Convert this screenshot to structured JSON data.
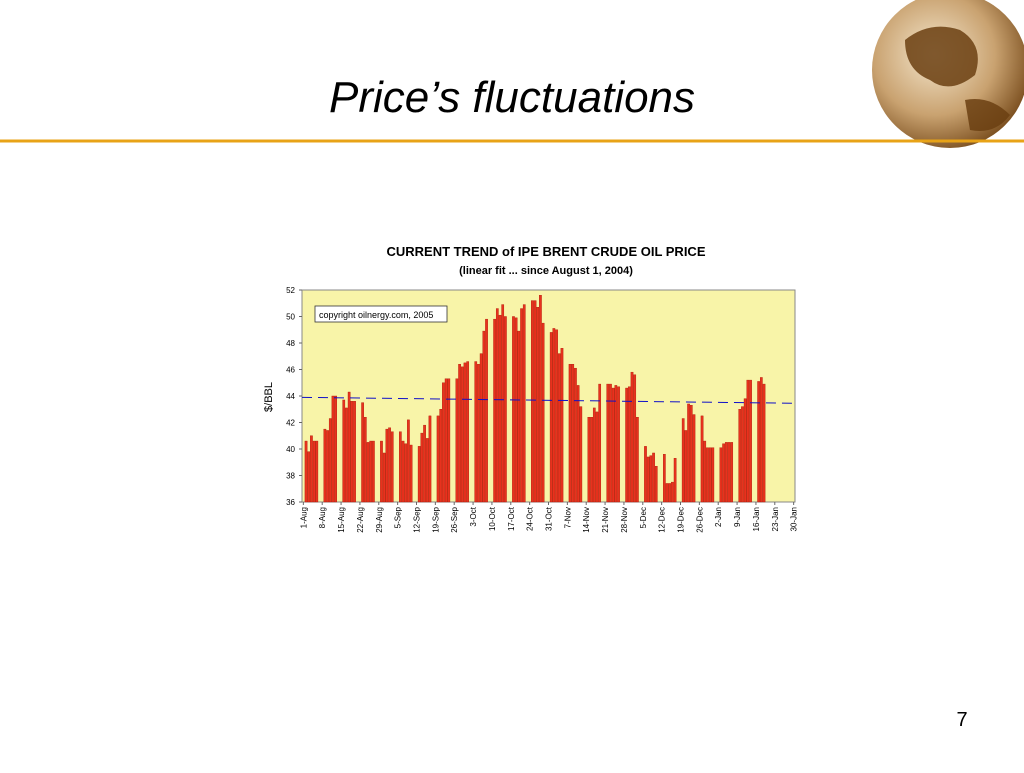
{
  "slide_title": "Price’s fluctuations",
  "page_number": "7",
  "chart_data": {
    "type": "bar",
    "title": "CURRENT TREND of IPE BRENT CRUDE OIL PRICE",
    "subtitle": "(linear fit ... since August 1, 2004)",
    "y_label": "$/BBL",
    "annotation": "copyright oilnergy.com, 2005",
    "color": "#e8321e",
    "background": "#f8f4a8",
    "ylim": [
      36,
      52
    ],
    "yticks": [
      36,
      38,
      40,
      42,
      44,
      46,
      48,
      50,
      52
    ],
    "categories": [
      "1-Aug",
      null,
      null,
      null,
      null,
      null,
      null,
      "8-Aug",
      null,
      null,
      null,
      null,
      null,
      null,
      "15-Aug",
      null,
      null,
      null,
      null,
      null,
      null,
      "22-Aug",
      null,
      null,
      null,
      null,
      null,
      null,
      "29-Aug",
      null,
      null,
      null,
      null,
      null,
      null,
      "5-Sep",
      null,
      null,
      null,
      null,
      null,
      null,
      "12-Sep",
      null,
      null,
      null,
      null,
      null,
      null,
      "19-Sep",
      null,
      null,
      null,
      null,
      null,
      null,
      "26-Sep",
      null,
      null,
      null,
      null,
      null,
      null,
      "3-Oct",
      null,
      null,
      null,
      null,
      null,
      null,
      "10-Oct",
      null,
      null,
      null,
      null,
      null,
      null,
      "17-Oct",
      null,
      null,
      null,
      null,
      null,
      null,
      "24-Oct",
      null,
      null,
      null,
      null,
      null,
      null,
      "31-Oct",
      null,
      null,
      null,
      null,
      null,
      null,
      "7-Nov",
      null,
      null,
      null,
      null,
      null,
      null,
      "14-Nov",
      null,
      null,
      null,
      null,
      null,
      null,
      "21-Nov",
      null,
      null,
      null,
      null,
      null,
      null,
      "28-Nov",
      null,
      null,
      null,
      null,
      null,
      null,
      "5-Dec",
      null,
      null,
      null,
      null,
      null,
      null,
      "12-Dec",
      null,
      null,
      null,
      null,
      null,
      null,
      "19-Dec",
      null,
      null,
      null,
      null,
      null,
      null,
      "26-Dec",
      null,
      null,
      null,
      null,
      null,
      null,
      "2-Jan",
      null,
      null,
      null,
      null,
      null,
      null,
      "9-Jan",
      null,
      null,
      null,
      null,
      null,
      null,
      "16-Jan",
      null,
      null,
      null,
      null,
      null,
      null,
      "23-Jan",
      null,
      null,
      null,
      null,
      null,
      null,
      "30-Jan"
    ],
    "values": [
      null,
      40.6,
      39.8,
      41.0,
      40.6,
      40.6,
      null,
      null,
      41.5,
      41.4,
      42.3,
      44.0,
      44.0,
      null,
      null,
      43.7,
      43.1,
      44.3,
      43.6,
      43.6,
      null,
      null,
      43.5,
      42.4,
      40.5,
      40.6,
      40.6,
      null,
      null,
      40.6,
      39.7,
      41.5,
      41.6,
      41.3,
      null,
      null,
      41.3,
      40.6,
      40.4,
      42.2,
      40.3,
      null,
      null,
      40.2,
      41.2,
      41.8,
      40.8,
      42.5,
      null,
      null,
      42.5,
      43.0,
      45.0,
      45.3,
      45.3,
      null,
      null,
      45.3,
      46.4,
      46.2,
      46.5,
      46.6,
      null,
      null,
      46.6,
      46.4,
      47.2,
      48.9,
      49.8,
      null,
      null,
      49.8,
      50.6,
      50.1,
      50.9,
      50.0,
      null,
      null,
      50.0,
      49.9,
      48.9,
      50.6,
      50.9,
      null,
      null,
      51.2,
      51.2,
      50.7,
      51.6,
      49.5,
      null,
      null,
      48.8,
      49.1,
      49.0,
      47.2,
      47.6,
      null,
      null,
      46.4,
      46.4,
      46.1,
      44.8,
      43.2,
      null,
      null,
      42.4,
      42.4,
      43.1,
      42.8,
      44.9,
      null,
      null,
      44.9,
      44.9,
      44.6,
      44.8,
      44.7,
      null,
      null,
      44.6,
      44.7,
      45.8,
      45.6,
      42.4,
      null,
      null,
      40.2,
      39.4,
      39.5,
      39.7,
      38.7,
      null,
      null,
      39.6,
      37.4,
      37.4,
      37.5,
      39.3,
      null,
      null,
      42.3,
      41.4,
      43.4,
      43.3,
      42.6,
      null,
      null,
      42.5,
      40.6,
      40.1,
      40.1,
      40.1,
      null,
      null,
      40.1,
      40.4,
      40.5,
      40.5,
      40.5,
      null,
      null,
      43.0,
      43.2,
      43.8,
      45.2,
      45.2,
      null,
      null,
      45.1,
      45.4,
      44.9,
      null,
      null,
      null,
      null,
      null,
      null,
      null,
      null,
      null,
      null,
      null
    ],
    "trend_line": {
      "color": "#1010c8",
      "values": [
        43.9,
        43.45
      ]
    }
  }
}
